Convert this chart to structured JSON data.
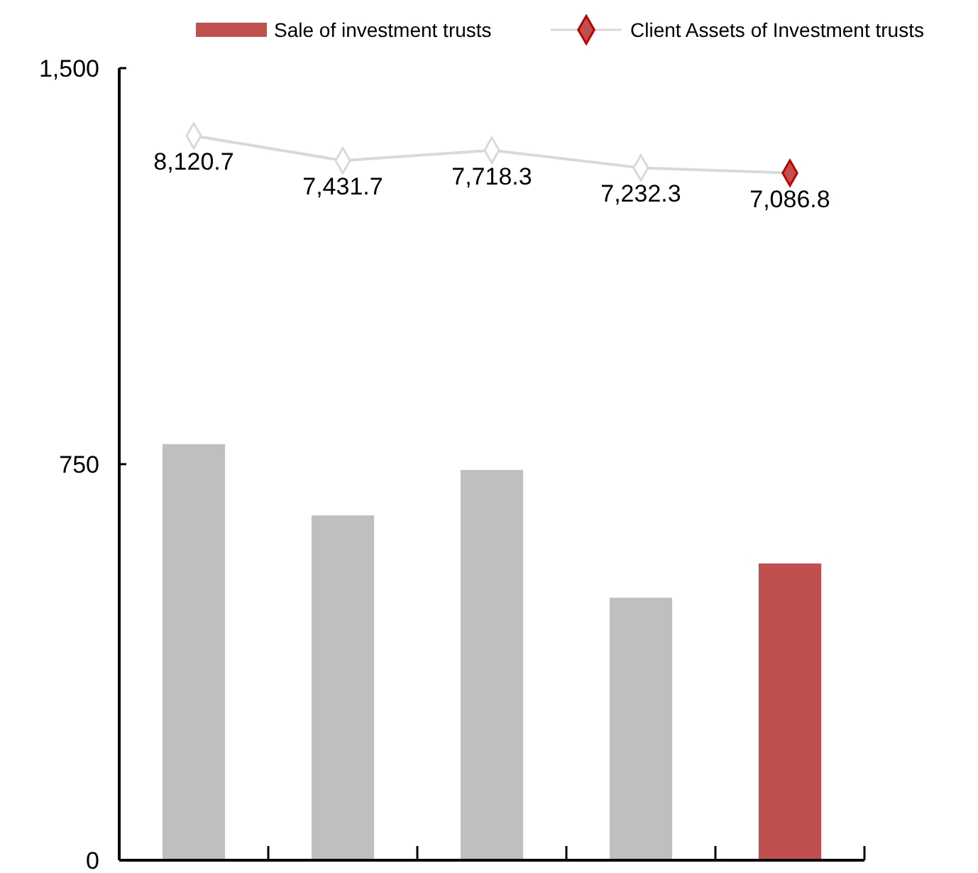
{
  "chart_data": {
    "type": "bar",
    "categories": [
      null,
      null,
      null,
      null,
      null
    ],
    "ylim": [
      0,
      1500
    ],
    "yticks": [
      0,
      750,
      {
        "value": 1500,
        "label": "1,500"
      }
    ],
    "y2lim": [
      -12000,
      10000
    ],
    "tick_labels": "y",
    "legend": "top",
    "grid": false,
    "series": [
      {
        "name": "Sale of investment trusts",
        "color": "#c0504d",
        "colors": [
          "#bfbfbf",
          "#bfbfbf",
          "#bfbfbf",
          "#bfbfbf",
          "#c0504d"
        ],
        "values": [
          788,
          653,
          739,
          497,
          562
        ]
      },
      {
        "name": "Client Assets of Investment trusts",
        "type": "line",
        "axis": "y2",
        "color": "#d9d9d9",
        "colors": [
          "#ffffff",
          "#ffffff",
          "#ffffff",
          "#ffffff",
          "#c0504d"
        ],
        "marker": "diamond",
        "values": [
          8120.7,
          7431.7,
          7718.3,
          7232.3,
          7086.8
        ],
        "value_labels": [
          "8,120.7",
          "7,431.7",
          "7,718.3",
          "7,232.3",
          "7,086.8"
        ]
      }
    ]
  }
}
